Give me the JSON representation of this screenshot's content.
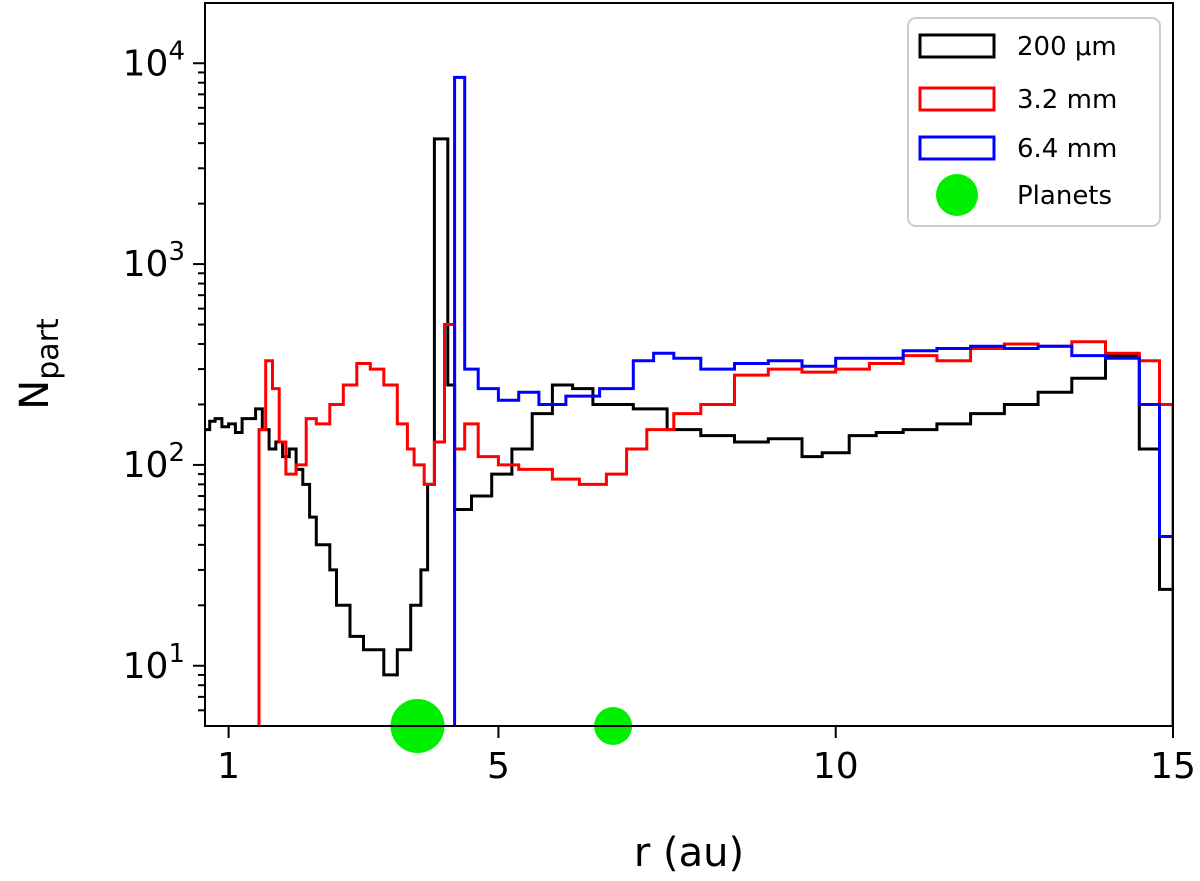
{
  "chart_data": {
    "type": "line",
    "title": "",
    "xlabel": "r (au)",
    "ylabel_main": "N",
    "ylabel_sub": "part",
    "xlim": [
      0.65,
      15
    ],
    "ylim_log10": [
      0.7,
      4.3
    ],
    "y_scale": "log",
    "legend_position": "top-right",
    "x_ticks": [
      {
        "value": 1,
        "label": "1"
      },
      {
        "value": 5,
        "label": "5"
      },
      {
        "value": 10,
        "label": "10"
      },
      {
        "value": 15,
        "label": "15"
      }
    ],
    "y_ticks": [
      {
        "value": 10,
        "base": "10",
        "exp": "1"
      },
      {
        "value": 100,
        "base": "10",
        "exp": "2"
      },
      {
        "value": 1000,
        "base": "10",
        "exp": "3"
      },
      {
        "value": 10000,
        "base": "10",
        "exp": "4"
      }
    ],
    "series": [
      {
        "name": "200 μm",
        "color": "#000000",
        "style": "step",
        "points": [
          [
            0.65,
            150
          ],
          [
            0.72,
            165
          ],
          [
            0.8,
            170
          ],
          [
            0.9,
            155
          ],
          [
            1.0,
            160
          ],
          [
            1.1,
            145
          ],
          [
            1.2,
            170
          ],
          [
            1.4,
            190
          ],
          [
            1.5,
            150
          ],
          [
            1.6,
            120
          ],
          [
            1.7,
            130
          ],
          [
            1.8,
            110
          ],
          [
            1.9,
            120
          ],
          [
            2.0,
            95
          ],
          [
            2.1,
            80
          ],
          [
            2.2,
            55
          ],
          [
            2.3,
            40
          ],
          [
            2.5,
            30
          ],
          [
            2.6,
            20
          ],
          [
            2.8,
            14
          ],
          [
            3.0,
            12
          ],
          [
            3.2,
            12
          ],
          [
            3.3,
            9
          ],
          [
            3.5,
            12
          ],
          [
            3.7,
            20
          ],
          [
            3.85,
            30
          ],
          [
            3.95,
            80
          ],
          [
            4.05,
            4200
          ],
          [
            4.25,
            250
          ],
          [
            4.35,
            60
          ],
          [
            4.6,
            70
          ],
          [
            4.9,
            90
          ],
          [
            5.2,
            120
          ],
          [
            5.5,
            180
          ],
          [
            5.8,
            250
          ],
          [
            6.1,
            240
          ],
          [
            6.4,
            200
          ],
          [
            7.0,
            190
          ],
          [
            7.5,
            150
          ],
          [
            8.0,
            140
          ],
          [
            8.5,
            130
          ],
          [
            9.0,
            135
          ],
          [
            9.5,
            110
          ],
          [
            9.8,
            115
          ],
          [
            10.2,
            140
          ],
          [
            10.6,
            145
          ],
          [
            11.0,
            150
          ],
          [
            11.5,
            160
          ],
          [
            12.0,
            180
          ],
          [
            12.5,
            200
          ],
          [
            13.0,
            230
          ],
          [
            13.5,
            270
          ],
          [
            14.0,
            350
          ],
          [
            14.5,
            120
          ],
          [
            14.8,
            24
          ],
          [
            15.0,
            5
          ]
        ]
      },
      {
        "name": "3.2 mm",
        "color": "#ff0000",
        "style": "step",
        "points": [
          [
            1.45,
            5
          ],
          [
            1.45,
            150
          ],
          [
            1.55,
            330
          ],
          [
            1.65,
            240
          ],
          [
            1.75,
            130
          ],
          [
            1.85,
            90
          ],
          [
            2.0,
            100
          ],
          [
            2.15,
            170
          ],
          [
            2.3,
            160
          ],
          [
            2.5,
            200
          ],
          [
            2.7,
            250
          ],
          [
            2.9,
            320
          ],
          [
            3.1,
            300
          ],
          [
            3.3,
            250
          ],
          [
            3.5,
            160
          ],
          [
            3.65,
            120
          ],
          [
            3.75,
            100
          ],
          [
            3.9,
            80
          ],
          [
            4.05,
            130
          ],
          [
            4.2,
            500
          ],
          [
            4.35,
            120
          ],
          [
            4.5,
            160
          ],
          [
            4.7,
            110
          ],
          [
            5.0,
            100
          ],
          [
            5.3,
            95
          ],
          [
            5.8,
            85
          ],
          [
            6.2,
            80
          ],
          [
            6.6,
            90
          ],
          [
            6.9,
            120
          ],
          [
            7.2,
            150
          ],
          [
            7.6,
            180
          ],
          [
            8.0,
            200
          ],
          [
            8.5,
            280
          ],
          [
            9.0,
            300
          ],
          [
            9.5,
            290
          ],
          [
            10.0,
            300
          ],
          [
            10.5,
            320
          ],
          [
            11.0,
            350
          ],
          [
            11.5,
            330
          ],
          [
            12.0,
            380
          ],
          [
            12.5,
            400
          ],
          [
            13.0,
            390
          ],
          [
            13.5,
            410
          ],
          [
            14.0,
            360
          ],
          [
            14.5,
            330
          ],
          [
            14.8,
            200
          ],
          [
            15.0,
            5
          ]
        ]
      },
      {
        "name": "6.4 mm",
        "color": "#0000ff",
        "style": "step",
        "points": [
          [
            4.35,
            5
          ],
          [
            4.35,
            8500
          ],
          [
            4.5,
            300
          ],
          [
            4.7,
            240
          ],
          [
            5.0,
            210
          ],
          [
            5.3,
            230
          ],
          [
            5.6,
            200
          ],
          [
            6.0,
            220
          ],
          [
            6.5,
            240
          ],
          [
            7.0,
            330
          ],
          [
            7.3,
            360
          ],
          [
            7.6,
            340
          ],
          [
            8.0,
            300
          ],
          [
            8.5,
            320
          ],
          [
            9.0,
            330
          ],
          [
            9.5,
            310
          ],
          [
            10.0,
            340
          ],
          [
            10.5,
            340
          ],
          [
            11.0,
            370
          ],
          [
            11.5,
            380
          ],
          [
            12.0,
            390
          ],
          [
            12.5,
            380
          ],
          [
            13.0,
            390
          ],
          [
            13.5,
            350
          ],
          [
            14.0,
            340
          ],
          [
            14.5,
            200
          ],
          [
            14.8,
            44
          ],
          [
            15.0,
            5
          ]
        ]
      }
    ],
    "planets": {
      "name": "Planets",
      "color": "#00ee00",
      "items": [
        {
          "r": 3.8,
          "size": "large"
        },
        {
          "r": 6.7,
          "size": "small"
        }
      ]
    }
  }
}
